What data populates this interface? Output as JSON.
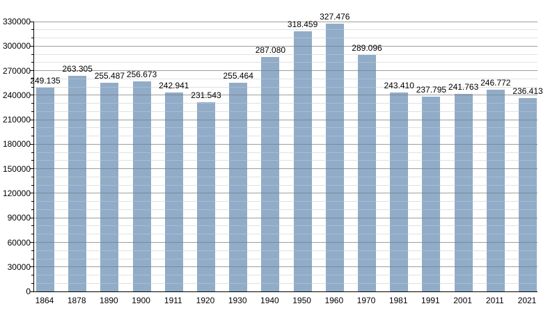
{
  "chart_data": {
    "type": "bar",
    "title": "",
    "xlabel": "",
    "ylabel": "",
    "categories": [
      "1864",
      "1878",
      "1890",
      "1900",
      "1911",
      "1920",
      "1930",
      "1940",
      "1950",
      "1960",
      "1970",
      "1981",
      "1991",
      "2001",
      "2011",
      "2021"
    ],
    "values": [
      249135,
      263305,
      255487,
      256673,
      242941,
      231543,
      255464,
      287080,
      318459,
      327476,
      289096,
      243410,
      237795,
      241763,
      246772,
      236413
    ],
    "bar_labels": [
      "249.135",
      "263.305",
      "255.487",
      "256.673",
      "242.941",
      "231.543",
      "255.464",
      "287.080",
      "318.459",
      "327.476",
      "289.096",
      "243.410",
      "237.795",
      "241.763",
      "246.772",
      "236.413"
    ],
    "ylim": [
      0,
      330000
    ],
    "y_major_step": 30000,
    "y_minor_step": 10000,
    "y_tick_labels": [
      "0",
      "30000",
      "60000",
      "90000",
      "120000",
      "150000",
      "180000",
      "210000",
      "240000",
      "270000",
      "300000",
      "330000"
    ],
    "grid": true,
    "legend": false,
    "colors": {
      "bar_fill": "#92aecb",
      "bar_fill_rgba": "rgba(124,157,192,0.85)",
      "major_grid": "#a6a6a6",
      "minor_grid": "#e4e4e4",
      "axis": "#000000",
      "text": "#000000",
      "background": "#ffffff"
    }
  }
}
